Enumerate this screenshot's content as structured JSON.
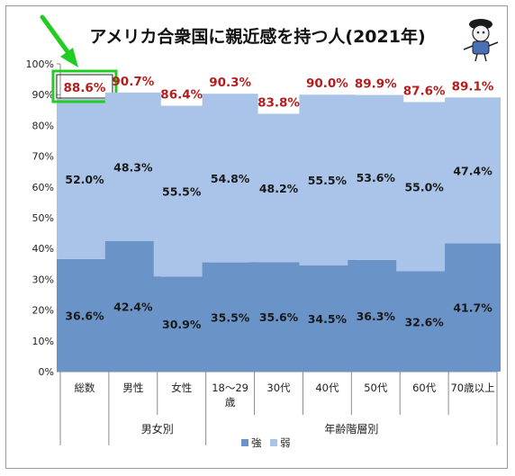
{
  "chart_data": {
    "type": "bar",
    "stacked": true,
    "title": "アメリカ合衆国に親近感を持つ人(2021年)",
    "categories": [
      "総数",
      "男性",
      "女性",
      "18〜29歳",
      "30代",
      "40代",
      "50代",
      "60代",
      "70歳以上"
    ],
    "category_groups": [
      {
        "label": "男女別",
        "categories": [
          "男性",
          "女性"
        ]
      },
      {
        "label": "年齢階層別",
        "categories": [
          "18〜29歳",
          "30代",
          "40代",
          "50代",
          "60代",
          "70歳以上"
        ]
      }
    ],
    "series": [
      {
        "name": "強",
        "values": [
          36.6,
          42.4,
          30.9,
          35.5,
          35.6,
          34.5,
          36.3,
          32.6,
          41.7
        ],
        "color": "#6a93c8"
      },
      {
        "name": "弱",
        "values": [
          52.0,
          48.3,
          55.5,
          54.8,
          48.2,
          55.5,
          53.6,
          55.0,
          47.4
        ],
        "color": "#a9c4e8"
      }
    ],
    "totals": [
      88.6,
      90.7,
      86.4,
      90.3,
      83.8,
      90.0,
      89.9,
      87.6,
      89.1
    ],
    "total_label_color": "#b41e1e",
    "highlight_index": 0,
    "highlight_color": "#22cc22",
    "y_ticks": [
      "0%",
      "10%",
      "20%",
      "30%",
      "40%",
      "50%",
      "60%",
      "70%",
      "80%",
      "90%",
      "100%"
    ],
    "ylim": [
      0,
      100
    ],
    "y_unit": "%",
    "legend": [
      "強",
      "弱"
    ],
    "legend_position": "bottom",
    "grid": false
  }
}
